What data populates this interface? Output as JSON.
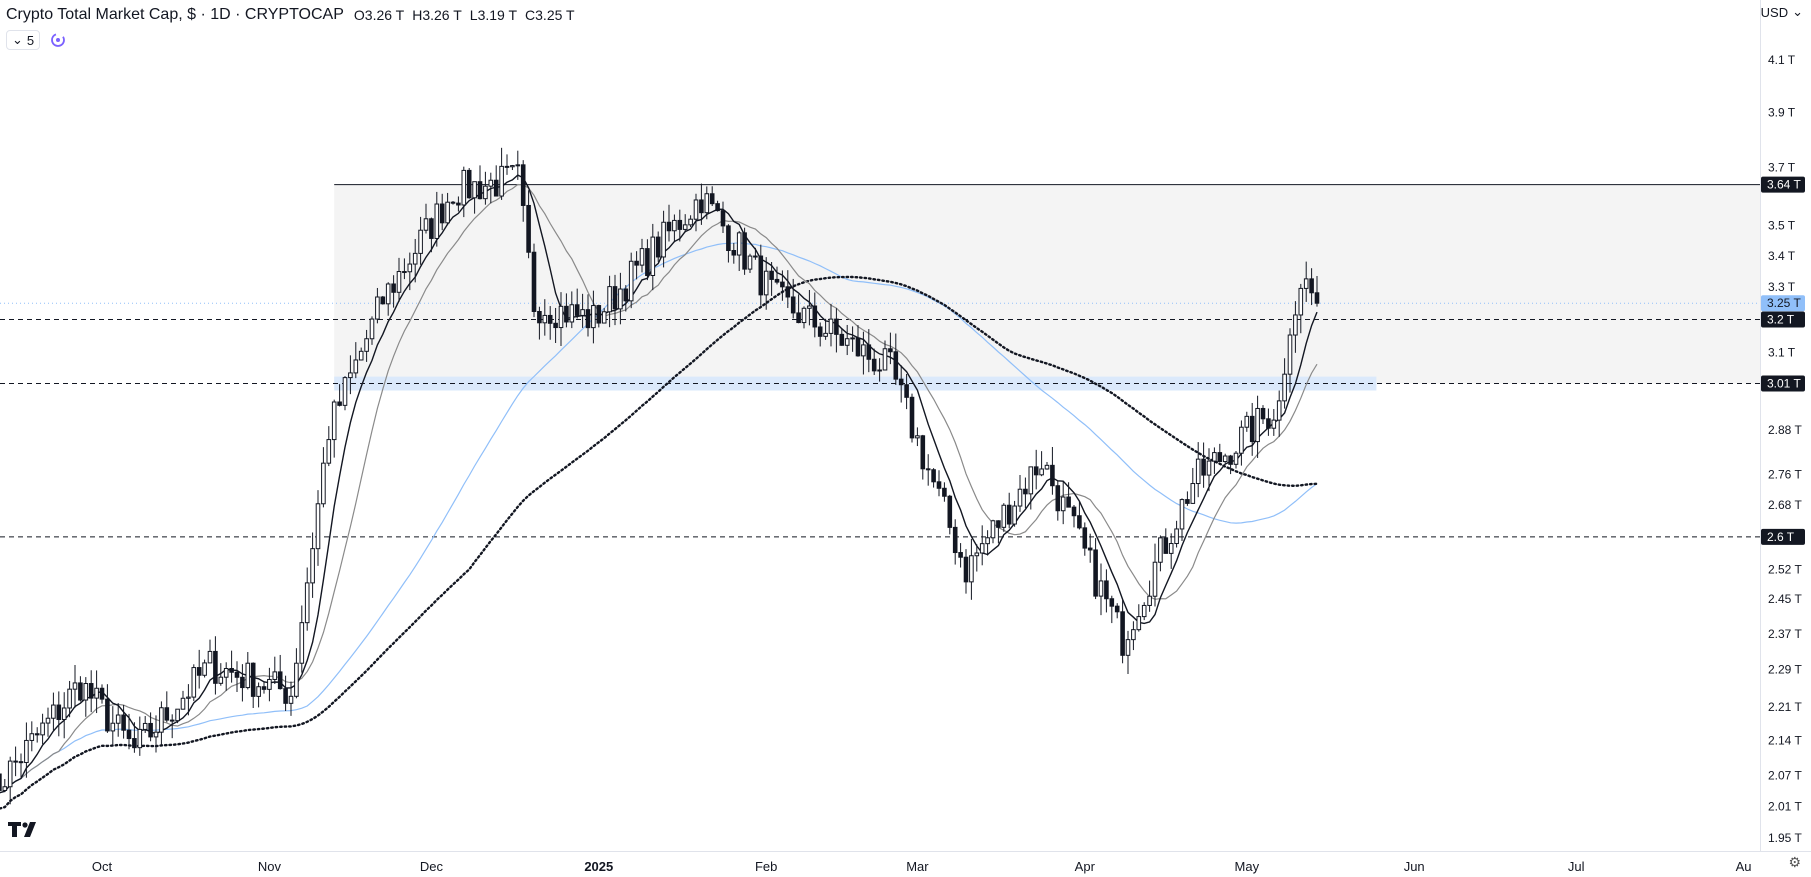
{
  "header": {
    "title": "Crypto Total Market Cap, $ · 1D · CRYPTOCAP",
    "ohlc": [
      {
        "k": "O",
        "v": "3.26 T"
      },
      {
        "k": "H",
        "v": "3.26 T"
      },
      {
        "k": "L",
        "v": "3.19 T"
      },
      {
        "k": "C",
        "v": "3.25 T"
      }
    ],
    "indicator_count": "5",
    "currency": "USD"
  },
  "chart_data": {
    "type": "candlestick",
    "title": "Crypto Total Market Cap, $ · 1D · CRYPTOCAP",
    "xlabel": "",
    "ylabel": "",
    "x_ticks": [
      "Oct",
      "Nov",
      "Dec",
      "2025",
      "Feb",
      "Mar",
      "Apr",
      "May",
      "Jun",
      "Jul",
      "Au"
    ],
    "y_ticks": [
      "4.1 T",
      "3.9 T",
      "3.7 T",
      "3.5 T",
      "3.4 T",
      "3.3 T",
      "3.1 T",
      "2.88 T",
      "2.76 T",
      "2.68 T",
      "2.52 T",
      "2.45 T",
      "2.37 T",
      "2.29 T",
      "2.21 T",
      "2.14 T",
      "2.07 T",
      "2.01 T",
      "1.95 T"
    ],
    "y_tick_values": [
      4.1,
      3.9,
      3.7,
      3.5,
      3.4,
      3.3,
      3.1,
      2.88,
      2.76,
      2.68,
      2.52,
      2.45,
      2.37,
      2.29,
      2.21,
      2.14,
      2.07,
      2.01,
      1.95
    ],
    "price_labels": [
      {
        "label": "3.64 T",
        "value": 3.64,
        "style": "solid"
      },
      {
        "label": "3.25 T",
        "value": 3.25,
        "style": "current"
      },
      {
        "label": "3.2 T",
        "value": 3.2,
        "style": "dashed"
      },
      {
        "label": "3.01 T",
        "value": 3.01,
        "style": "dashed"
      },
      {
        "label": "2.6 T",
        "value": 2.6,
        "style": "dashed"
      }
    ],
    "range_zone": {
      "from": "2024-11-13",
      "top": 3.64,
      "bottom": 3.01
    },
    "support_band": {
      "from": "2024-11-13",
      "to": "2025-05-25",
      "top": 3.03,
      "bottom": 2.99
    },
    "colors": {
      "bull": "#ffffff",
      "bear": "#131722",
      "ma_fast": "#131722",
      "ma_mid": "#8a8a8a",
      "ma_blue": "#90bff9",
      "ma_dotted": "#131722",
      "current": "#90bff9"
    },
    "key_points": [
      {
        "date": "2024-09-10",
        "close": 2.03
      },
      {
        "date": "2024-09-27",
        "close": 2.26
      },
      {
        "date": "2024-10-07",
        "close": 2.12
      },
      {
        "date": "2024-10-21",
        "close": 2.3
      },
      {
        "date": "2024-11-05",
        "close": 2.24
      },
      {
        "date": "2024-11-12",
        "close": 2.88
      },
      {
        "date": "2024-11-22",
        "close": 3.26
      },
      {
        "date": "2024-12-05",
        "close": 3.62
      },
      {
        "date": "2024-12-17",
        "close": 3.66
      },
      {
        "date": "2024-12-20",
        "close": 3.25
      },
      {
        "date": "2024-12-31",
        "close": 3.2
      },
      {
        "date": "2025-01-20",
        "close": 3.6
      },
      {
        "date": "2025-02-03",
        "close": 3.26
      },
      {
        "date": "2025-02-24",
        "close": 3.05
      },
      {
        "date": "2025-03-10",
        "close": 2.52
      },
      {
        "date": "2025-03-24",
        "close": 2.8
      },
      {
        "date": "2025-04-08",
        "close": 2.36
      },
      {
        "date": "2025-04-21",
        "close": 2.74
      },
      {
        "date": "2025-05-07",
        "close": 2.95
      },
      {
        "date": "2025-05-09",
        "close": 3.2
      },
      {
        "date": "2025-05-12",
        "close": 3.32
      },
      {
        "date": "2025-05-14",
        "close": 3.25
      }
    ]
  }
}
